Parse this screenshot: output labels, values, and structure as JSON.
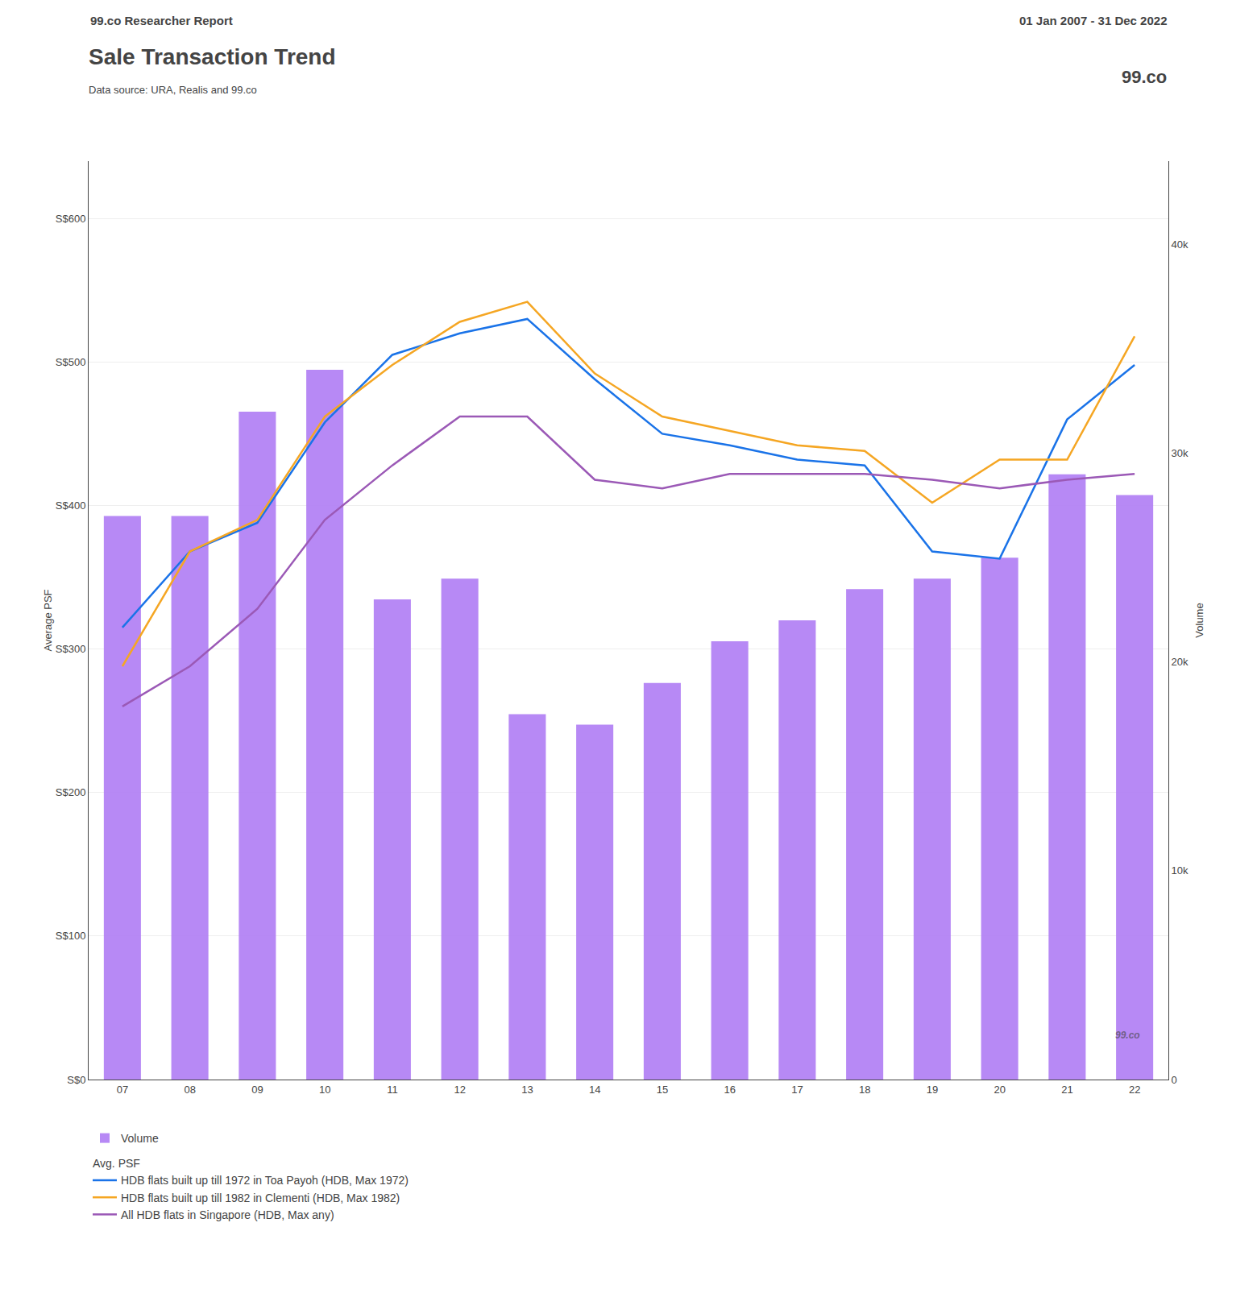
{
  "chart_data": {
    "type": "bar",
    "title": "Sale Transaction Trend",
    "subtitle": "Data source: URA, Realis and 99.co",
    "annotations": [
      "99.co Researcher Report",
      "01 Jan 2007 - 31 Dec 2022",
      "99.co",
      "99.co",
      "Avg. PSF"
    ],
    "categories": [
      "07",
      "08",
      "09",
      "10",
      "11",
      "12",
      "13",
      "14",
      "15",
      "16",
      "17",
      "18",
      "19",
      "20",
      "21",
      "22"
    ],
    "series": [
      {
        "name": "Volume",
        "type": "bar",
        "axis": "y2",
        "color": "#b07df5",
        "values": [
          27000,
          27000,
          32000,
          34000,
          23000,
          24000,
          17500,
          17000,
          19000,
          21000,
          22000,
          23500,
          24000,
          25000,
          29000,
          28000
        ]
      },
      {
        "name": "HDB flats built up till 1972 in Toa Payoh (HDB, Max 1972)",
        "type": "line",
        "color": "#1a73e8",
        "values": [
          315,
          368,
          388,
          458,
          505,
          520,
          530,
          488,
          450,
          442,
          432,
          428,
          368,
          363,
          460,
          498
        ]
      },
      {
        "name": "HDB flats built up till 1982 in Clementi (HDB, Max 1982)",
        "type": "line",
        "color": "#f5a623",
        "values": [
          288,
          368,
          390,
          462,
          498,
          528,
          542,
          492,
          462,
          452,
          442,
          438,
          402,
          432,
          432,
          518
        ]
      },
      {
        "name": "All HDB flats in Singapore (HDB, Max any)",
        "type": "line",
        "color": "#9b59b6",
        "values": [
          260,
          288,
          328,
          390,
          428,
          462,
          462,
          418,
          412,
          422,
          422,
          422,
          418,
          412,
          418,
          422
        ]
      }
    ],
    "ylabel": "Average PSF",
    "y2label": "Volume",
    "ylim": [
      0,
      640
    ],
    "yticks": [
      {
        "value": 0,
        "label": "S$0"
      },
      {
        "value": 100,
        "label": "S$100"
      },
      {
        "value": 200,
        "label": "S$200"
      },
      {
        "value": 300,
        "label": "S$300"
      },
      {
        "value": 400,
        "label": "S$400"
      },
      {
        "value": 500,
        "label": "S$500"
      },
      {
        "value": 600,
        "label": "S$600"
      }
    ],
    "y2lim": [
      0,
      44000
    ],
    "y2ticks": [
      0,
      {
        "value": 10000,
        "label": "10k"
      },
      {
        "value": 20000,
        "label": "20k"
      },
      {
        "value": 30000,
        "label": "30k"
      },
      {
        "value": 40000,
        "label": "40k"
      }
    ],
    "grid": true,
    "legend": "bottom"
  }
}
